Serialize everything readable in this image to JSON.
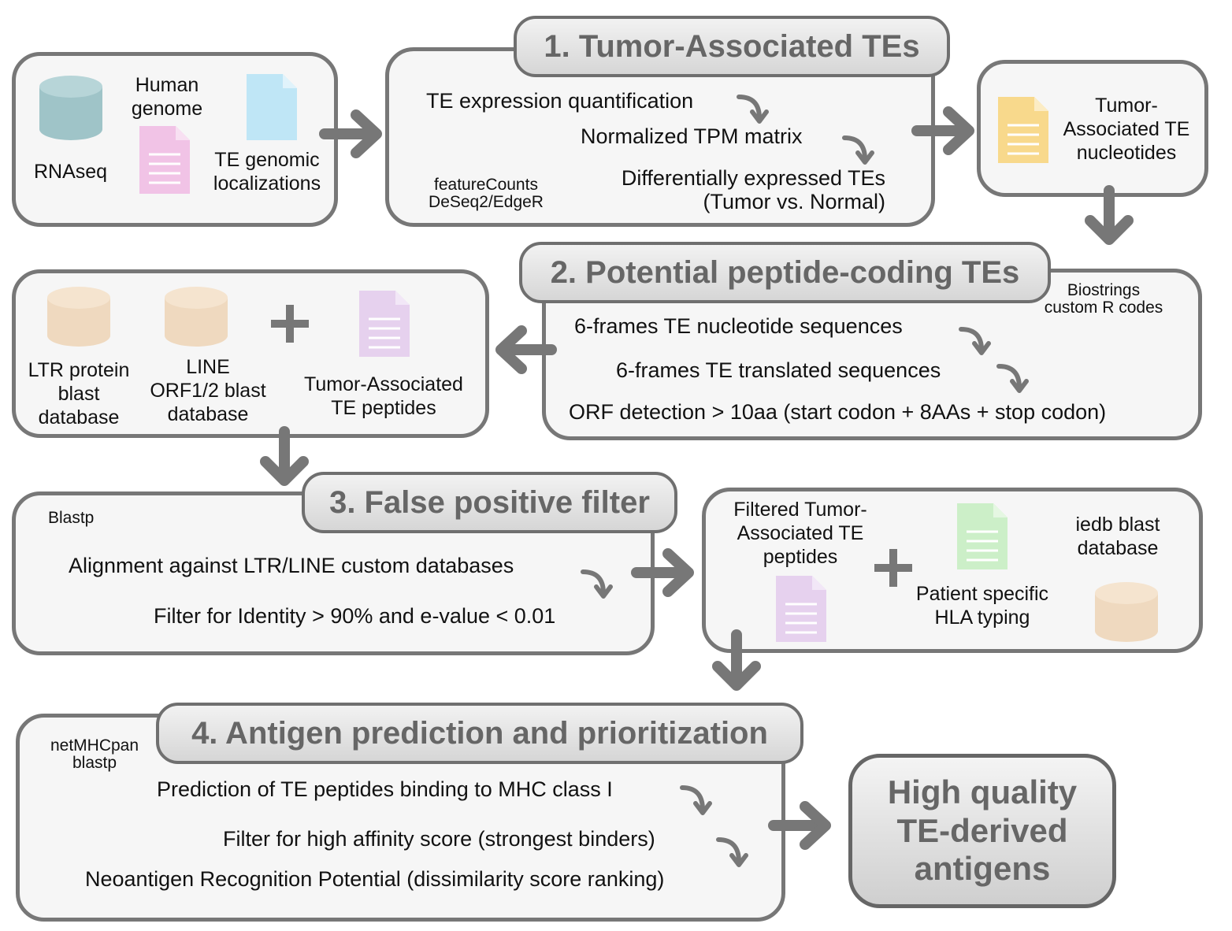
{
  "colors": {
    "border": "#777777",
    "arrow": "#777777",
    "cylinder_teal": "#9fc4c8",
    "cylinder_tan": "#efd9bf",
    "doc_pink": "#f1c3e6",
    "doc_blue": "#bfe6f6",
    "doc_yellow": "#f8d98c",
    "doc_lavender": "#e6d1ee",
    "doc_green": "#ccefc8"
  },
  "icons": {
    "rnaseq": "database-cylinder-icon",
    "genome": "document-icon",
    "te_localizations": "document-icon",
    "nucleotides": "document-icon",
    "blast_db": "database-cylinder-icon",
    "peptides": "document-icon",
    "hla": "document-icon",
    "plus": "plus-icon",
    "curved_arrow": "curved-arrow-icon"
  },
  "inputs": {
    "rnaseq": "RNAseq",
    "genome": "Human\ngenome",
    "te_localizations": "TE genomic\nlocalizations"
  },
  "step1": {
    "title": "1. Tumor-Associated TEs",
    "tools": "featureCounts\nDeSeq2/EdgeR",
    "line1": "TE expression quantification",
    "line2": "Normalized TPM matrix",
    "line3": "Differentially expressed TEs\n(Tumor vs. Normal)"
  },
  "nucleotides": {
    "label": "Tumor-\nAssociated TE\nnucleotides"
  },
  "step2": {
    "title": "2. Potential peptide-coding TEs",
    "tools": "Biostrings\ncustom R codes",
    "line1": "6-frames TE nucleotide sequences",
    "line2": "6-frames TE translated sequences",
    "line3": "ORF detection > 10aa (start codon + 8AAs + stop codon)"
  },
  "databases": {
    "ltr": "LTR protein\nblast\ndatabase",
    "line": "LINE\nORF1/2 blast\ndatabase",
    "peptides": "Tumor-Associated\nTE peptides"
  },
  "step3": {
    "title": "3. False positive filter",
    "tools": "Blastp",
    "line1": "Alignment against LTR/LINE custom databases",
    "line2": "Filter for Identity > 90% and e-value < 0.01"
  },
  "filtered": {
    "peptides": "Filtered Tumor-\nAssociated TE\npeptides",
    "hla": "Patient specific\nHLA typing",
    "iedb": "iedb blast\ndatabase"
  },
  "step4": {
    "title": "4. Antigen prediction and prioritization",
    "tools": "netMHCpan\nblastp",
    "line1": "Prediction of TE peptides binding to MHC class I",
    "line2": "Filter for high affinity score (strongest binders)",
    "line3": "Neoantigen Recognition Potential  (dissimilarity score ranking)"
  },
  "result": {
    "line1": "High quality",
    "line2": "TE-derived",
    "line3": "antigens"
  }
}
